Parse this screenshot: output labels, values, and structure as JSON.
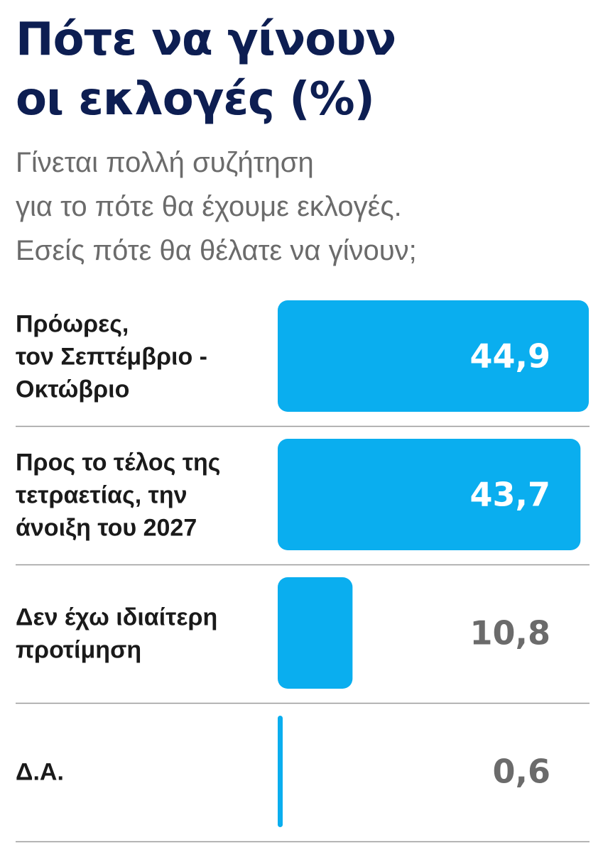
{
  "title_lines": [
    "Πότε να γίνουν",
    "οι εκλογές (%)"
  ],
  "subtitle_lines": [
    "Γίνεται πολλή συζήτηση",
    "για το πότε θα έχουμε εκλογές.",
    "Εσείς πότε θα θέλατε να γίνουν;"
  ],
  "colors": {
    "bar": "#0aaeef",
    "title": "#0d1e52",
    "label_inside": "#ffffff",
    "label_outside": "#6b6b6b",
    "divider": "#9a9a9a"
  },
  "chart_data": {
    "type": "bar",
    "orientation": "horizontal",
    "title": "Πότε να γίνουν οι εκλογές (%)",
    "categories": [
      [
        "Πρόωρες,",
        "τον Σεπτέμβριο -",
        "Οκτώβριο"
      ],
      [
        "Προς το τέλος της",
        "τετραετίας, την",
        "άνοιξη του 2027"
      ],
      [
        "Δεν έχω ιδιαίτερη",
        "προτίμηση"
      ],
      [
        "Δ.Α."
      ]
    ],
    "values": [
      44.9,
      43.7,
      10.8,
      0.6
    ],
    "value_labels": [
      "44,9",
      "43,7",
      "10,8",
      "0,6"
    ],
    "xlim": [
      0,
      45
    ],
    "grid": false,
    "legend": "none"
  }
}
